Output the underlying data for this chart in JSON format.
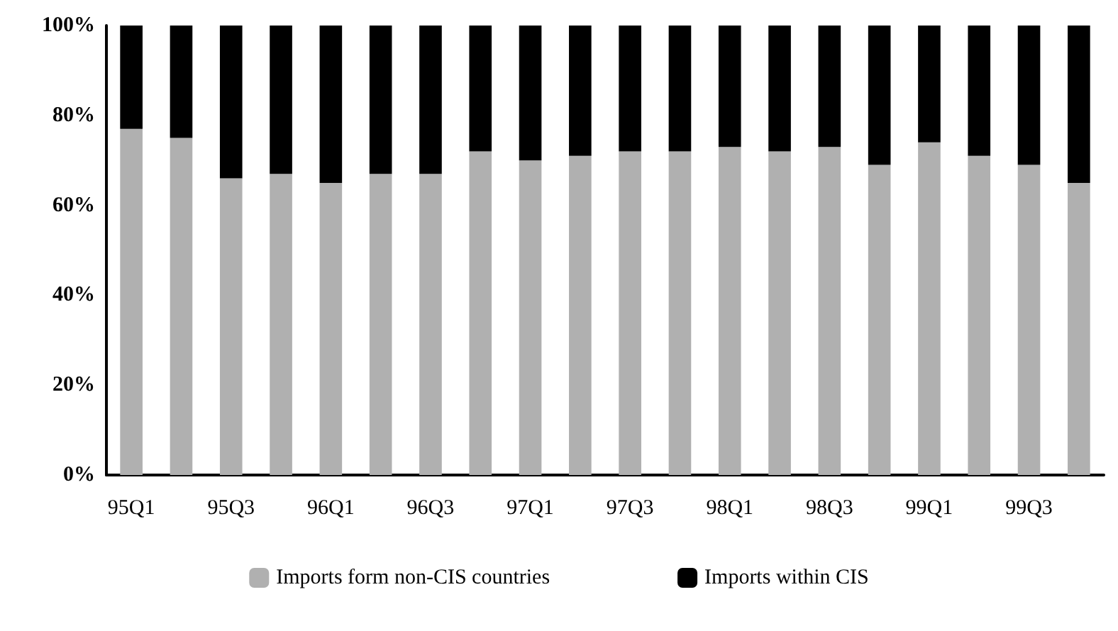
{
  "chart_data": {
    "type": "bar",
    "stacked": true,
    "categories": [
      "95Q1",
      null,
      "95Q3",
      null,
      "96Q1",
      null,
      "96Q3",
      null,
      "97Q1",
      null,
      "97Q3",
      null,
      "98Q1",
      null,
      "98Q3",
      null,
      "99Q1",
      null,
      "99Q3",
      null
    ],
    "series": [
      {
        "name": "Imports form non-CIS countries",
        "color": "#b0b0b0",
        "values": [
          77,
          75,
          66,
          67,
          65,
          67,
          67,
          72,
          70,
          71,
          72,
          72,
          73,
          72,
          73,
          69,
          74,
          71,
          69,
          65
        ]
      },
      {
        "name": "Imports within CIS",
        "color": "#000000",
        "values": [
          23,
          25,
          34,
          33,
          35,
          33,
          33,
          28,
          30,
          29,
          28,
          28,
          27,
          28,
          27,
          31,
          26,
          29,
          31,
          35
        ]
      }
    ],
    "ylim": [
      0,
      100
    ],
    "yticks": [
      {
        "value": 0,
        "label": "0%"
      },
      {
        "value": 20,
        "label": "20%"
      },
      {
        "value": 40,
        "label": "40%"
      },
      {
        "value": 60,
        "label": "60%"
      },
      {
        "value": 80,
        "label": "80%"
      },
      {
        "value": 100,
        "label": "100%"
      }
    ],
    "grid": false,
    "legend": "bottom"
  }
}
